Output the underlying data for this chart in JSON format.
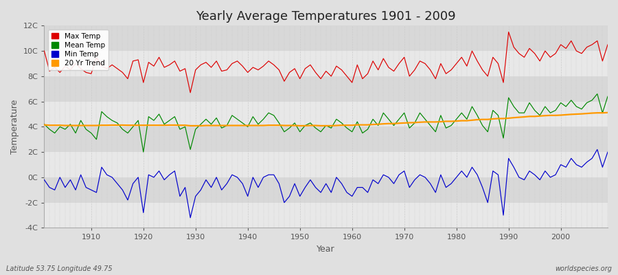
{
  "title": "Yearly Average Temperatures 1901 - 2009",
  "xlabel": "Year",
  "ylabel": "Temperature",
  "lat_lon_label": "Latitude 53.75 Longitude 49.75",
  "watermark": "worldspecies.org",
  "years": [
    1901,
    1902,
    1903,
    1904,
    1905,
    1906,
    1907,
    1908,
    1909,
    1910,
    1911,
    1912,
    1913,
    1914,
    1915,
    1916,
    1917,
    1918,
    1919,
    1920,
    1921,
    1922,
    1923,
    1924,
    1925,
    1926,
    1927,
    1928,
    1929,
    1930,
    1931,
    1932,
    1933,
    1934,
    1935,
    1936,
    1937,
    1938,
    1939,
    1940,
    1941,
    1942,
    1943,
    1944,
    1945,
    1946,
    1947,
    1948,
    1949,
    1950,
    1951,
    1952,
    1953,
    1954,
    1955,
    1956,
    1957,
    1958,
    1959,
    1960,
    1961,
    1962,
    1963,
    1964,
    1965,
    1966,
    1967,
    1968,
    1969,
    1970,
    1971,
    1972,
    1973,
    1974,
    1975,
    1976,
    1977,
    1978,
    1979,
    1980,
    1981,
    1982,
    1983,
    1984,
    1985,
    1986,
    1987,
    1988,
    1989,
    1990,
    1991,
    1992,
    1993,
    1994,
    1995,
    1996,
    1997,
    1998,
    1999,
    2000,
    2001,
    2002,
    2003,
    2004,
    2005,
    2006,
    2007,
    2008,
    2009
  ],
  "max_temp": [
    10.0,
    8.4,
    8.7,
    8.3,
    8.8,
    8.5,
    9.0,
    8.6,
    8.3,
    8.2,
    9.5,
    8.8,
    8.6,
    8.9,
    8.6,
    8.3,
    7.8,
    9.2,
    9.3,
    7.5,
    9.1,
    8.8,
    9.5,
    8.7,
    8.9,
    9.2,
    8.4,
    8.6,
    6.7,
    8.5,
    8.9,
    9.1,
    8.7,
    9.2,
    8.4,
    8.5,
    9.0,
    9.2,
    8.8,
    8.3,
    8.7,
    8.5,
    8.8,
    9.2,
    8.9,
    8.5,
    7.6,
    8.3,
    8.6,
    7.8,
    8.6,
    8.9,
    8.3,
    7.8,
    8.4,
    8.0,
    8.8,
    8.5,
    8.0,
    7.5,
    8.9,
    7.8,
    8.2,
    9.2,
    8.5,
    9.4,
    8.7,
    8.4,
    9.0,
    9.5,
    8.0,
    8.5,
    9.2,
    9.0,
    8.5,
    7.8,
    9.0,
    8.2,
    8.5,
    9.0,
    9.5,
    8.8,
    10.0,
    9.2,
    8.5,
    8.0,
    9.5,
    9.0,
    7.5,
    11.5,
    10.3,
    9.8,
    9.5,
    10.2,
    9.8,
    9.2,
    10.0,
    9.5,
    9.8,
    10.5,
    10.2,
    10.8,
    10.0,
    9.8,
    10.3,
    10.5,
    10.8,
    9.2,
    10.5
  ],
  "mean_temp": [
    4.2,
    3.8,
    3.5,
    4.0,
    3.8,
    4.2,
    3.5,
    4.5,
    3.8,
    3.5,
    3.0,
    5.2,
    4.8,
    4.5,
    4.3,
    3.8,
    3.5,
    4.0,
    4.5,
    2.0,
    4.8,
    4.5,
    5.0,
    4.2,
    4.5,
    4.8,
    3.8,
    4.0,
    2.2,
    3.8,
    4.2,
    4.6,
    4.2,
    4.7,
    3.9,
    4.1,
    4.9,
    4.6,
    4.3,
    4.0,
    4.8,
    4.2,
    4.6,
    5.1,
    4.9,
    4.3,
    3.6,
    3.9,
    4.3,
    3.6,
    4.1,
    4.3,
    3.9,
    3.6,
    4.1,
    3.9,
    4.6,
    4.3,
    3.9,
    3.6,
    4.4,
    3.5,
    3.8,
    4.6,
    4.1,
    5.1,
    4.6,
    4.1,
    4.6,
    5.1,
    3.9,
    4.3,
    5.1,
    4.6,
    4.1,
    3.6,
    4.9,
    3.9,
    4.1,
    4.6,
    5.1,
    4.6,
    5.6,
    4.9,
    4.1,
    3.6,
    5.3,
    4.9,
    3.1,
    6.3,
    5.6,
    5.1,
    5.1,
    5.9,
    5.3,
    4.9,
    5.6,
    5.1,
    5.3,
    5.9,
    5.6,
    6.1,
    5.6,
    5.4,
    5.9,
    6.1,
    6.6,
    5.1,
    6.4
  ],
  "min_temp": [
    -0.2,
    -0.8,
    -1.0,
    0.0,
    -0.8,
    -0.2,
    -1.0,
    0.2,
    -0.8,
    -1.0,
    -1.2,
    0.8,
    0.2,
    0.0,
    -0.5,
    -1.0,
    -1.8,
    -0.5,
    0.0,
    -2.8,
    0.2,
    0.0,
    0.5,
    -0.2,
    0.2,
    0.5,
    -1.5,
    -0.8,
    -3.2,
    -1.5,
    -1.0,
    -0.2,
    -0.8,
    0.0,
    -1.0,
    -0.5,
    0.2,
    0.0,
    -0.5,
    -1.5,
    0.0,
    -0.8,
    0.0,
    0.2,
    0.2,
    -0.5,
    -2.0,
    -1.5,
    -0.5,
    -1.5,
    -0.8,
    -0.2,
    -0.8,
    -1.2,
    -0.5,
    -1.2,
    0.0,
    -0.5,
    -1.2,
    -1.5,
    -0.8,
    -0.8,
    -1.2,
    -0.2,
    -0.5,
    0.2,
    0.0,
    -0.5,
    0.2,
    0.5,
    -0.8,
    -0.2,
    0.2,
    0.0,
    -0.5,
    -1.2,
    0.2,
    -0.8,
    -0.5,
    0.0,
    0.5,
    0.0,
    0.8,
    0.2,
    -0.8,
    -2.0,
    0.5,
    0.2,
    -3.0,
    1.5,
    0.8,
    0.0,
    -0.2,
    0.5,
    0.2,
    -0.2,
    0.5,
    0.0,
    0.2,
    1.0,
    0.8,
    1.5,
    1.0,
    0.8,
    1.2,
    1.5,
    2.2,
    0.8,
    2.0
  ],
  "trend_years": [
    1901,
    1902,
    1903,
    1904,
    1905,
    1906,
    1907,
    1908,
    1909,
    1910,
    1911,
    1912,
    1913,
    1914,
    1915,
    1916,
    1917,
    1918,
    1919,
    1920,
    1921,
    1922,
    1923,
    1924,
    1925,
    1926,
    1927,
    1928,
    1929,
    1930,
    1931,
    1932,
    1933,
    1934,
    1935,
    1936,
    1937,
    1938,
    1939,
    1940,
    1941,
    1942,
    1943,
    1944,
    1945,
    1946,
    1947,
    1948,
    1949,
    1950,
    1951,
    1952,
    1953,
    1954,
    1955,
    1956,
    1957,
    1958,
    1959,
    1960,
    1961,
    1962,
    1963,
    1964,
    1965,
    1966,
    1967,
    1968,
    1969,
    1970,
    1971,
    1972,
    1973,
    1974,
    1975,
    1976,
    1977,
    1978,
    1979,
    1980,
    1981,
    1982,
    1983,
    1984,
    1985,
    1986,
    1987,
    1988,
    1989,
    1990,
    1991,
    1992,
    1993,
    1994,
    1995,
    1996,
    1997,
    1998,
    1999,
    2000,
    2001,
    2002,
    2003,
    2004,
    2005,
    2006,
    2007,
    2008,
    2009
  ],
  "trend_vals": [
    4.15,
    4.12,
    4.12,
    4.12,
    4.1,
    4.1,
    4.1,
    4.1,
    4.1,
    4.1,
    4.1,
    4.12,
    4.12,
    4.13,
    4.13,
    4.13,
    4.12,
    4.12,
    4.12,
    4.12,
    4.12,
    4.12,
    4.12,
    4.12,
    4.13,
    4.13,
    4.12,
    4.12,
    4.08,
    4.08,
    4.08,
    4.1,
    4.1,
    4.1,
    4.1,
    4.1,
    4.1,
    4.1,
    4.1,
    4.1,
    4.1,
    4.1,
    4.1,
    4.12,
    4.12,
    4.12,
    4.1,
    4.1,
    4.1,
    4.08,
    4.08,
    4.1,
    4.1,
    4.08,
    4.08,
    4.08,
    4.1,
    4.12,
    4.12,
    4.12,
    4.15,
    4.15,
    4.15,
    4.18,
    4.2,
    4.23,
    4.25,
    4.25,
    4.28,
    4.3,
    4.32,
    4.33,
    4.36,
    4.38,
    4.38,
    4.38,
    4.4,
    4.43,
    4.43,
    4.45,
    4.48,
    4.48,
    4.52,
    4.56,
    4.58,
    4.58,
    4.62,
    4.65,
    4.65,
    4.68,
    4.72,
    4.75,
    4.78,
    4.82,
    4.82,
    4.85,
    4.88,
    4.9,
    4.9,
    4.92,
    4.95,
    4.98,
    5.0,
    5.02,
    5.05,
    5.08,
    5.1,
    5.1,
    5.12
  ],
  "colors": {
    "max_temp": "#dd0000",
    "mean_temp": "#008800",
    "min_temp": "#0000cc",
    "trend": "#ff9900",
    "fig_bg": "#e0e0e0",
    "plot_bg": "#f0f0f0",
    "band_light": "#e8e8e8",
    "band_dark": "#d8d8d8",
    "grid_line": "#cccccc",
    "axis_text": "#555555",
    "title_color": "#222222"
  },
  "ylim": [
    -4,
    12
  ],
  "yticks": [
    -4,
    -2,
    0,
    2,
    4,
    6,
    8,
    10,
    12
  ],
  "ytick_labels": [
    "-4C",
    "-2C",
    "0C",
    "2C",
    "4C",
    "6C",
    "8C",
    "10C",
    "12C"
  ],
  "xlim": [
    1901,
    2009
  ],
  "legend_items": [
    "Max Temp",
    "Mean Temp",
    "Min Temp",
    "20 Yr Trend"
  ],
  "legend_colors": [
    "#dd0000",
    "#008800",
    "#0000cc",
    "#ff9900"
  ],
  "title_fontsize": 13,
  "axis_label_fontsize": 9,
  "tick_fontsize": 8
}
